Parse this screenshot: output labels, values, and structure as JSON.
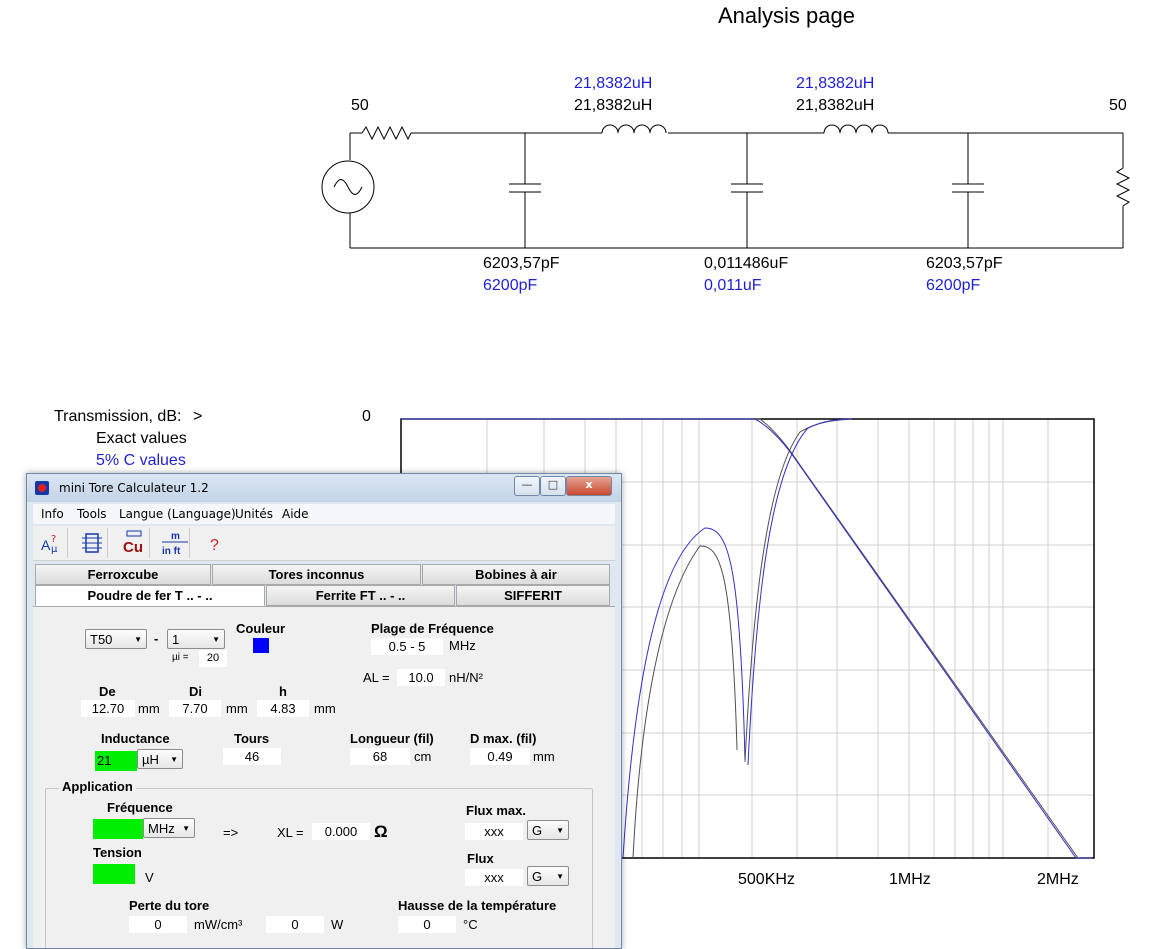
{
  "page": {
    "title": "Analysis page"
  },
  "schematic": {
    "source_r": "50",
    "load_r": "50",
    "l1_exact": "21,8382uH",
    "l1_std": "21,8382uH",
    "l2_exact": "21,8382uH",
    "l2_std": "21,8382uH",
    "c1_exact": "6203,57pF",
    "c1_std": "6200pF",
    "c2_exact": "0,011486uF",
    "c2_std": "0,011uF",
    "c3_exact": "6203,57pF",
    "c3_std": "6200pF"
  },
  "transmission": {
    "label": "Transmission, dB:",
    "arrow": ">",
    "exact_label": "Exact values",
    "pct_label": "5% C values",
    "y_top_label": "0"
  },
  "chart_data": {
    "type": "line",
    "title": "",
    "xlabel": "",
    "ylabel": "Transmission, dB",
    "x_tick_labels": [
      "500KHz",
      "1MHz",
      "2MHz"
    ],
    "grid": true,
    "series": [
      {
        "name": "Exact values",
        "color": "#404040"
      },
      {
        "name": "5% C values",
        "color": "#3030c8"
      }
    ]
  },
  "window": {
    "title": "mini Tore Calculateur 1.2",
    "buttons": {
      "minimize": "—",
      "maximize": "□",
      "close": "x"
    },
    "menu": [
      "Info",
      "Tools",
      "Langue (Language)",
      "Unités",
      "Aide"
    ],
    "toolbar_icons": [
      "al-mu-icon",
      "coil-icon",
      "copper-icon",
      "units-icon",
      "help-icon"
    ],
    "toolbar_text": {
      "cu": "Cu",
      "m": "m",
      "inft": "in ft",
      "help": "?"
    },
    "tabs_row1": [
      "Ferroxcube",
      "Tores inconnus",
      "Bobines à air"
    ],
    "tabs_row2": [
      "Poudre de fer T .. - ..",
      "Ferrite FT .. - ..",
      "SIFFERIT"
    ],
    "form": {
      "core": "T50",
      "dash": "-",
      "mix": "1",
      "mu_label": "µi =",
      "mu_value": "20",
      "couleur_label": "Couleur",
      "color_swatch": "#0000ff",
      "plage_label": "Plage de Fréquence",
      "plage_value": "0.5 - 5",
      "plage_unit": "MHz",
      "al_label": "AL =",
      "al_value": "10.0",
      "al_unit": "nH/N²",
      "de_label": "De",
      "de_value": "12.70",
      "di_label": "Di",
      "di_value": "7.70",
      "h_label": "h",
      "h_value": "4.83",
      "mm": "mm",
      "inductance_label": "Inductance",
      "inductance_value": "21",
      "inductance_unit": "µH",
      "tours_label": "Tours",
      "tours_value": "46",
      "longueur_label": "Longueur (fil)",
      "longueur_value": "68",
      "longueur_unit": "cm",
      "dmax_label": "D max. (fil)",
      "dmax_value": "0.49",
      "dmax_unit": "mm",
      "application_label": "Application",
      "frequence_label": "Fréquence",
      "freq_unit": "MHz",
      "arrow": "=>",
      "xl_label": "XL =",
      "xl_value": "0.000",
      "ohm": "Ω",
      "fluxmax_label": "Flux max.",
      "fluxmax_value": "xxx",
      "fluxmax_unit": "G",
      "tension_label": "Tension",
      "tension_unit": "V",
      "flux_label": "Flux",
      "flux_value": "xxx",
      "flux_unit": "G",
      "perte_label": "Perte du tore",
      "perte_value": "0",
      "perte_unit": "mW/cm³",
      "perte_w_value": "0",
      "perte_w_unit": "W",
      "hausse_label": "Hausse de la température",
      "hausse_value": "0",
      "hausse_unit": "°C"
    }
  }
}
